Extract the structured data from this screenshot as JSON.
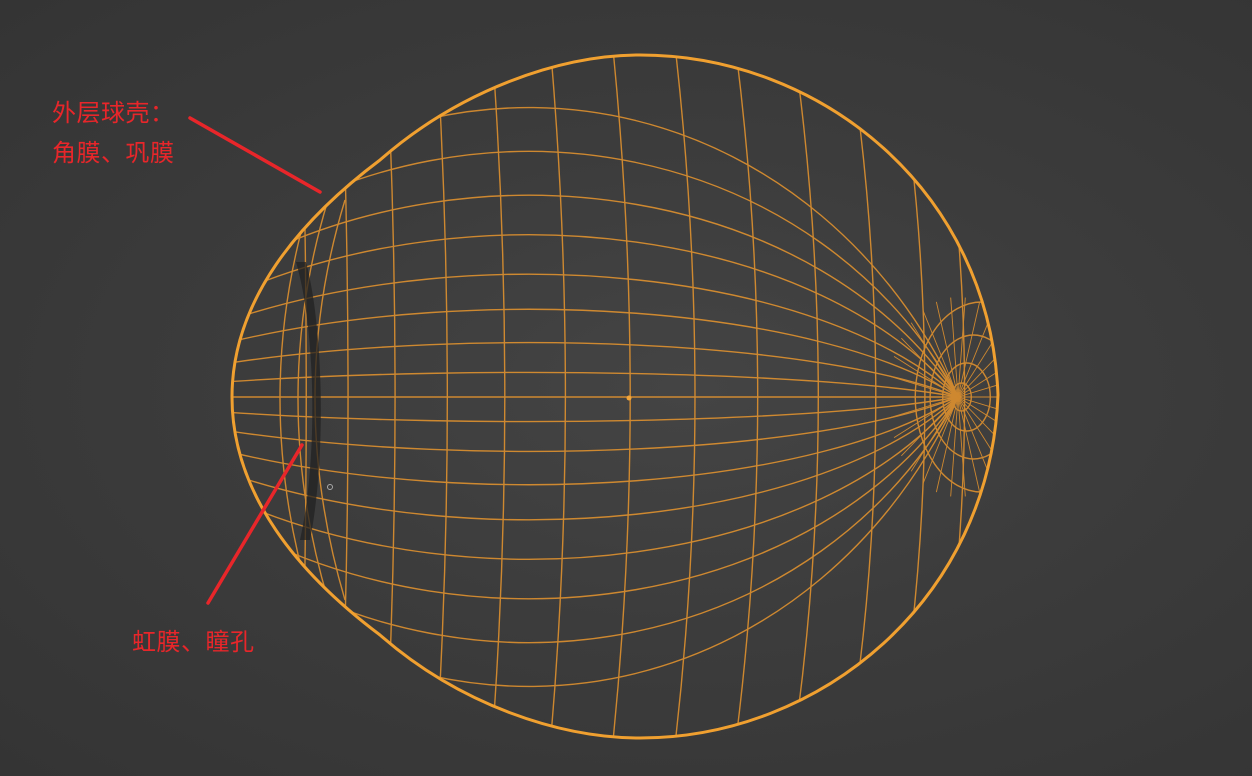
{
  "labels": {
    "outer_shell_line1": "外层球壳：",
    "outer_shell_line2": "角膜、巩膜",
    "iris_pupil": "虹膜、瞳孔"
  },
  "colors": {
    "background": "#3b3b3b",
    "wire": "#e8962e",
    "annotation": "#e8262a"
  },
  "icons": {
    "pivot": "object-origin-dot"
  }
}
